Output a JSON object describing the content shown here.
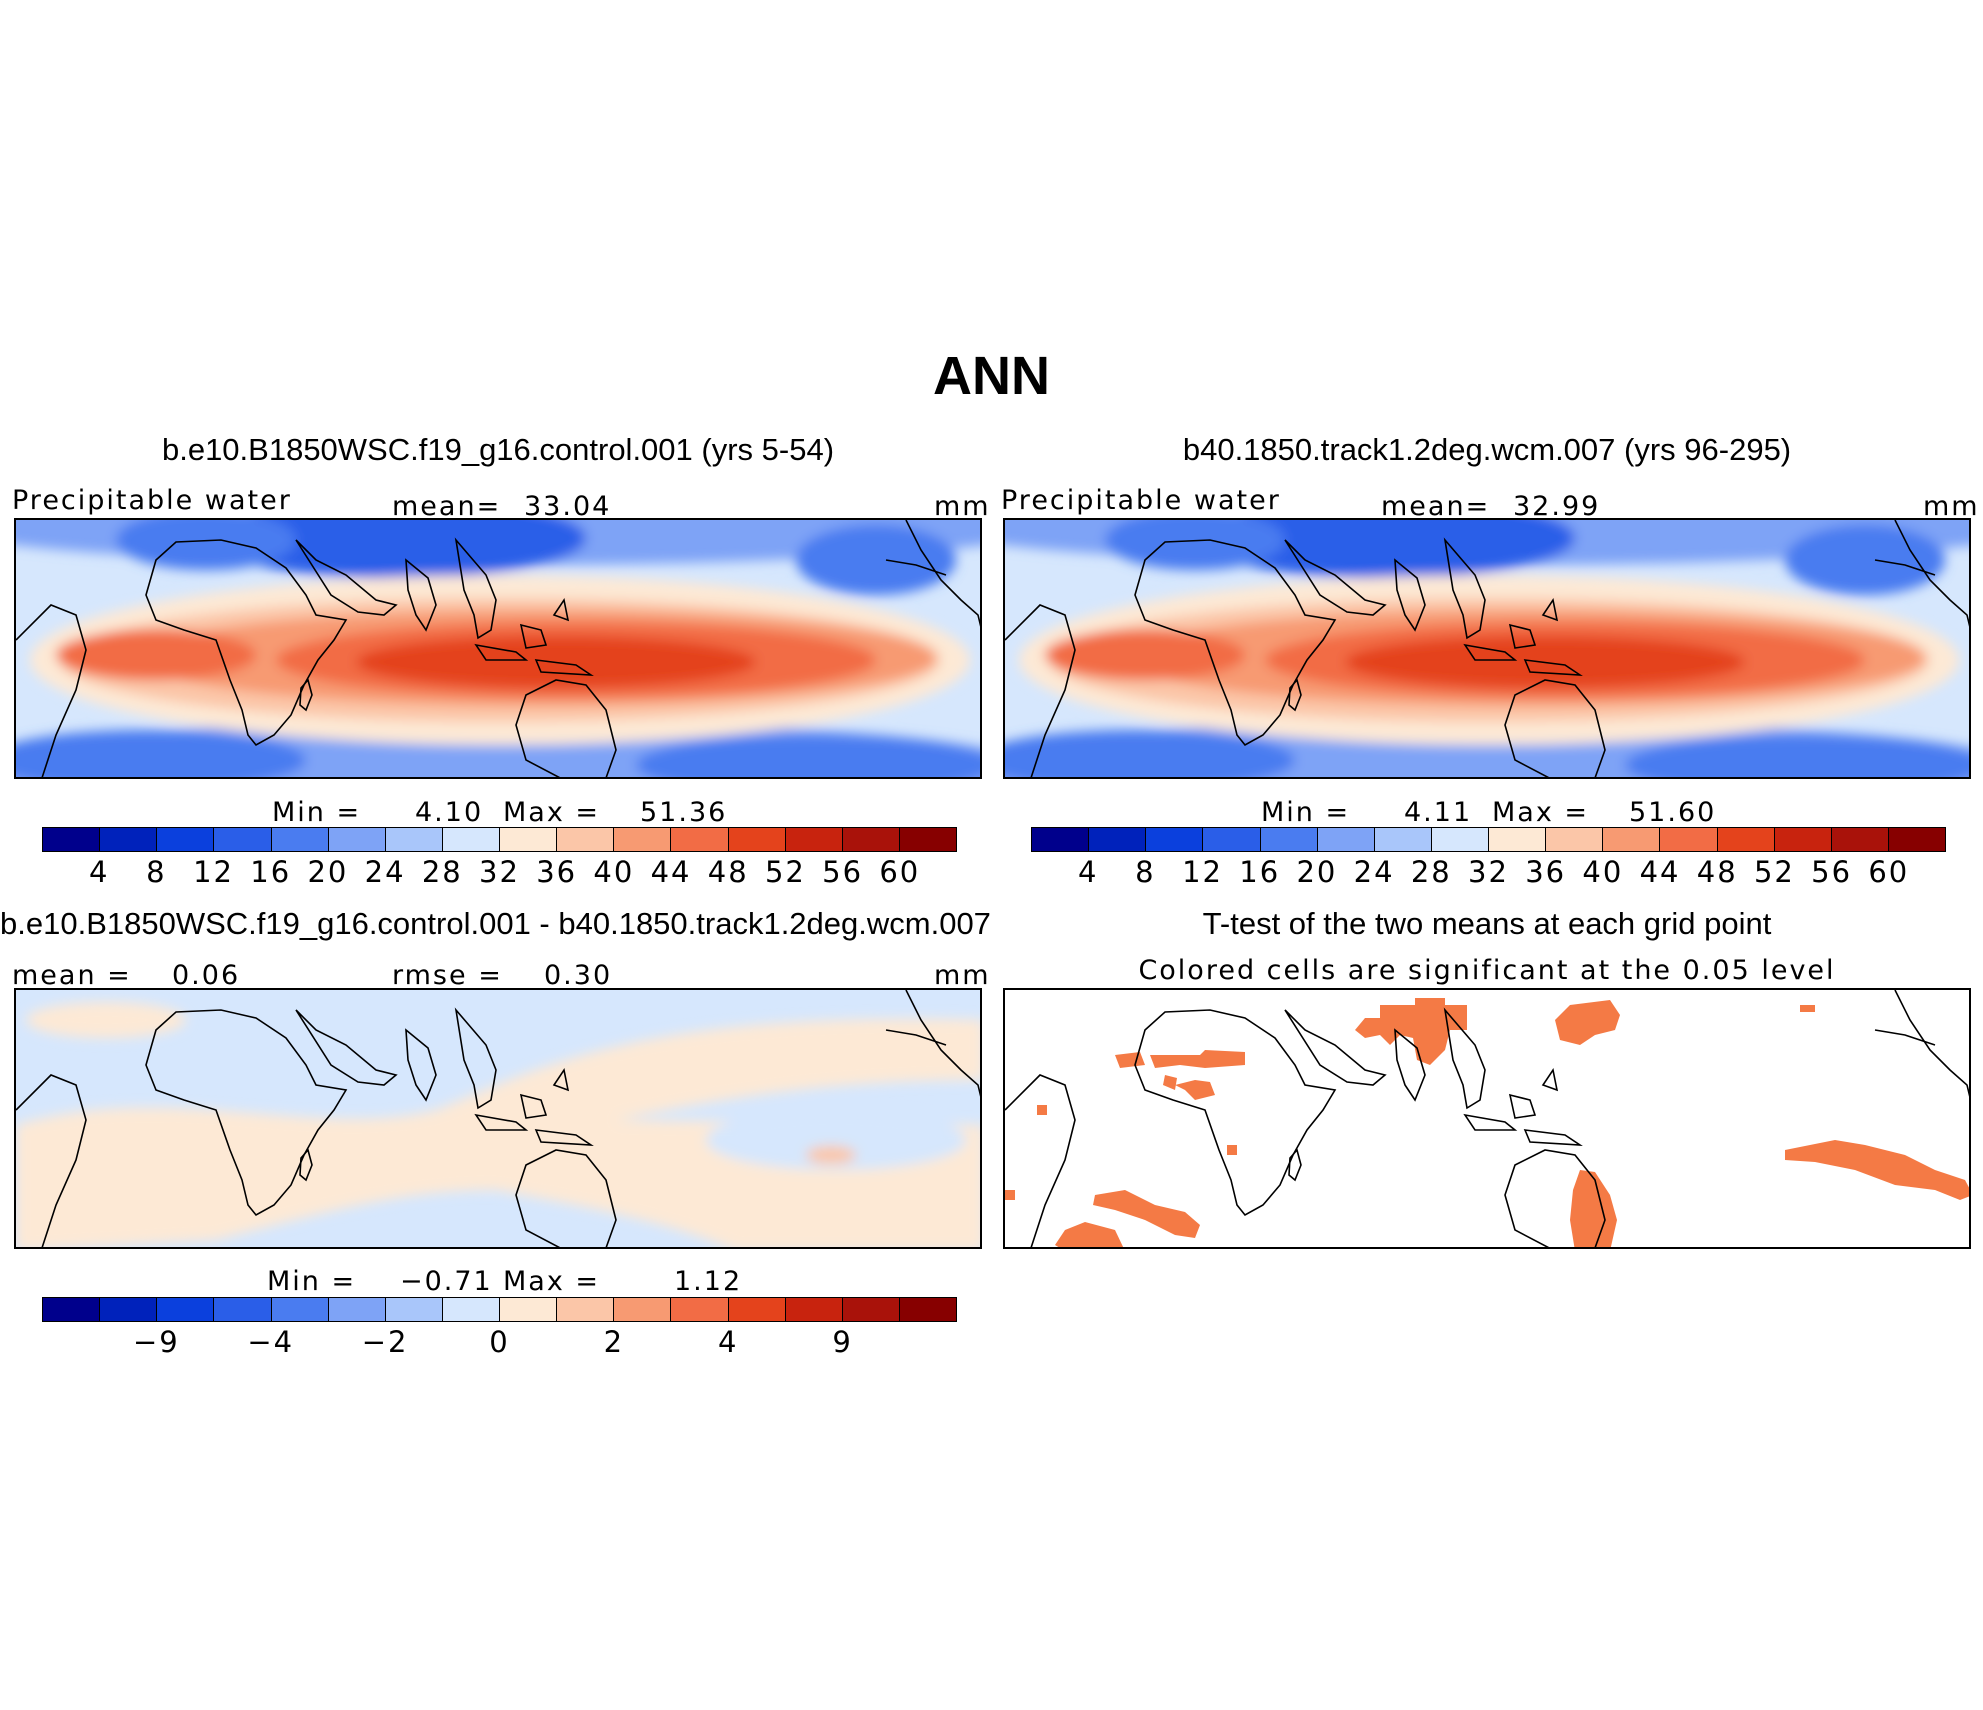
{
  "figure_title": "ANN",
  "panels": {
    "p1": {
      "title": "b.e10.B1850WSC.f19_g16.control.001 (yrs 5-54)",
      "variable": "Precipitable water",
      "stat_label": "mean=",
      "stat_value": "33.04",
      "units": "mm",
      "min_label": "Min =",
      "min_value": "4.10",
      "max_label": "Max =",
      "max_value": "51.36"
    },
    "p2": {
      "title": "b40.1850.track1.2deg.wcm.007 (yrs 96-295)",
      "variable": "Precipitable water",
      "stat_label": "mean=",
      "stat_value": "32.99",
      "units": "mm",
      "min_label": "Min =",
      "min_value": "4.11",
      "max_label": "Max =",
      "max_value": "51.60"
    },
    "p3": {
      "title": "b.e10.B1850WSC.f19_g16.control.001 - b40.1850.track1.2deg.wcm.007",
      "mean_label": "mean =",
      "mean_value": "0.06",
      "rmse_label": "rmse =",
      "rmse_value": "0.30",
      "units": "mm",
      "min_label": "Min =",
      "min_value": "−0.71",
      "max_label": "Max =",
      "max_value": "1.12"
    },
    "p4": {
      "title": "T-test of the two means at each grid point",
      "subtitle": "Colored cells are significant at the 0.05 level"
    }
  },
  "colors": {
    "abs_scale": [
      "#00008c",
      "#0022bb",
      "#0b40dd",
      "#2a5ee8",
      "#4a7cf0",
      "#7ea3f6",
      "#a9c6fa",
      "#d6e7fd",
      "#fde9d5",
      "#fbc6a8",
      "#f79a72",
      "#f26c45",
      "#e4431c",
      "#c8230e",
      "#a9120a",
      "#870000"
    ],
    "diff_scale": [
      "#00008c",
      "#0022bb",
      "#0b40dd",
      "#2a5ee8",
      "#4a7cf0",
      "#7ea3f6",
      "#a9c6fa",
      "#d6e7fd",
      "#fde9d5",
      "#fbc6a8",
      "#f79a72",
      "#f26c45",
      "#e4431c",
      "#c8230e",
      "#a9120a",
      "#870000"
    ],
    "significance": "#f47a45"
  },
  "colorbars": {
    "abs_ticks": [
      "4",
      "8",
      "12",
      "16",
      "20",
      "24",
      "28",
      "32",
      "36",
      "40",
      "44",
      "48",
      "52",
      "56",
      "60"
    ],
    "diff_ticks": [
      "−9",
      "−4",
      "−2",
      "0",
      "2",
      "4",
      "9"
    ]
  }
}
